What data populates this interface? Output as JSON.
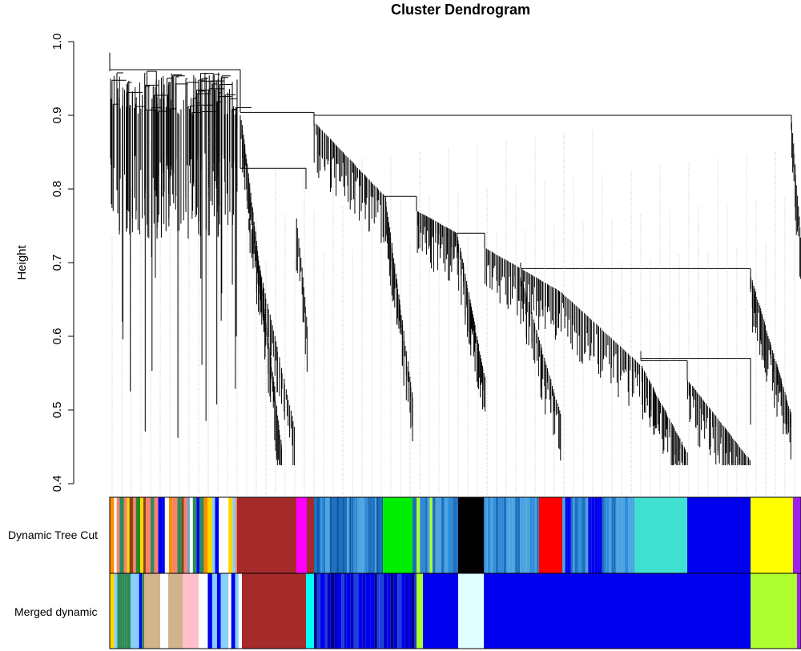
{
  "chart_data": {
    "type": "dendrogram",
    "title": "Cluster Dendrogram",
    "ylabel": "Height",
    "ylim": [
      0.4,
      1.0
    ],
    "yticks": [
      0.4,
      0.5,
      0.6,
      0.7,
      0.8,
      0.9,
      1.0
    ],
    "main_merges": [
      {
        "height": 0.985,
        "description": "root"
      },
      {
        "height": 0.904,
        "description": "large central clusters joined"
      },
      {
        "height": 0.9,
        "description": "right-most cluster joined"
      },
      {
        "height": 0.828,
        "description": "brown module join"
      },
      {
        "height": 0.79,
        "description": "blue/black module join"
      },
      {
        "height": 0.74,
        "description": "blue module join"
      },
      {
        "height": 0.692,
        "description": "turquoise/blue/yellow join"
      },
      {
        "height": 0.567,
        "description": "turquoise/blue module join"
      }
    ],
    "min_leaf_height": 0.425,
    "row_labels": [
      "Dynamic Tree Cut",
      "Merged dynamic"
    ],
    "module_colors": {
      "dynamic_tree_cut": [
        {
          "name": "mixed",
          "color": "#6aa5c8"
        },
        {
          "name": "brown",
          "color": "#a52a2a"
        },
        {
          "name": "magenta",
          "color": "#ff00ff"
        },
        {
          "name": "blue-mix",
          "color": "#2e8bd8"
        },
        {
          "name": "green",
          "color": "#00ee00"
        },
        {
          "name": "black",
          "color": "#000000"
        },
        {
          "name": "red",
          "color": "#ff0000"
        },
        {
          "name": "turquoise",
          "color": "#40e0d0"
        },
        {
          "name": "blue",
          "color": "#0000ee"
        },
        {
          "name": "yellow",
          "color": "#ffff00"
        },
        {
          "name": "purple",
          "color": "#a020f0"
        }
      ],
      "merged_dynamic": [
        {
          "name": "mixed",
          "color": "#3b6fd4"
        },
        {
          "name": "tan",
          "color": "#d2b48c"
        },
        {
          "name": "pink",
          "color": "#ffc0cb"
        },
        {
          "name": "brown",
          "color": "#a52a2a"
        },
        {
          "name": "cyan",
          "color": "#00ffff"
        },
        {
          "name": "blue",
          "color": "#0000ee"
        },
        {
          "name": "greenyellow",
          "color": "#adff2f"
        },
        {
          "name": "lightcyan",
          "color": "#e0ffff"
        },
        {
          "name": "purple",
          "color": "#a020f0"
        }
      ]
    }
  }
}
